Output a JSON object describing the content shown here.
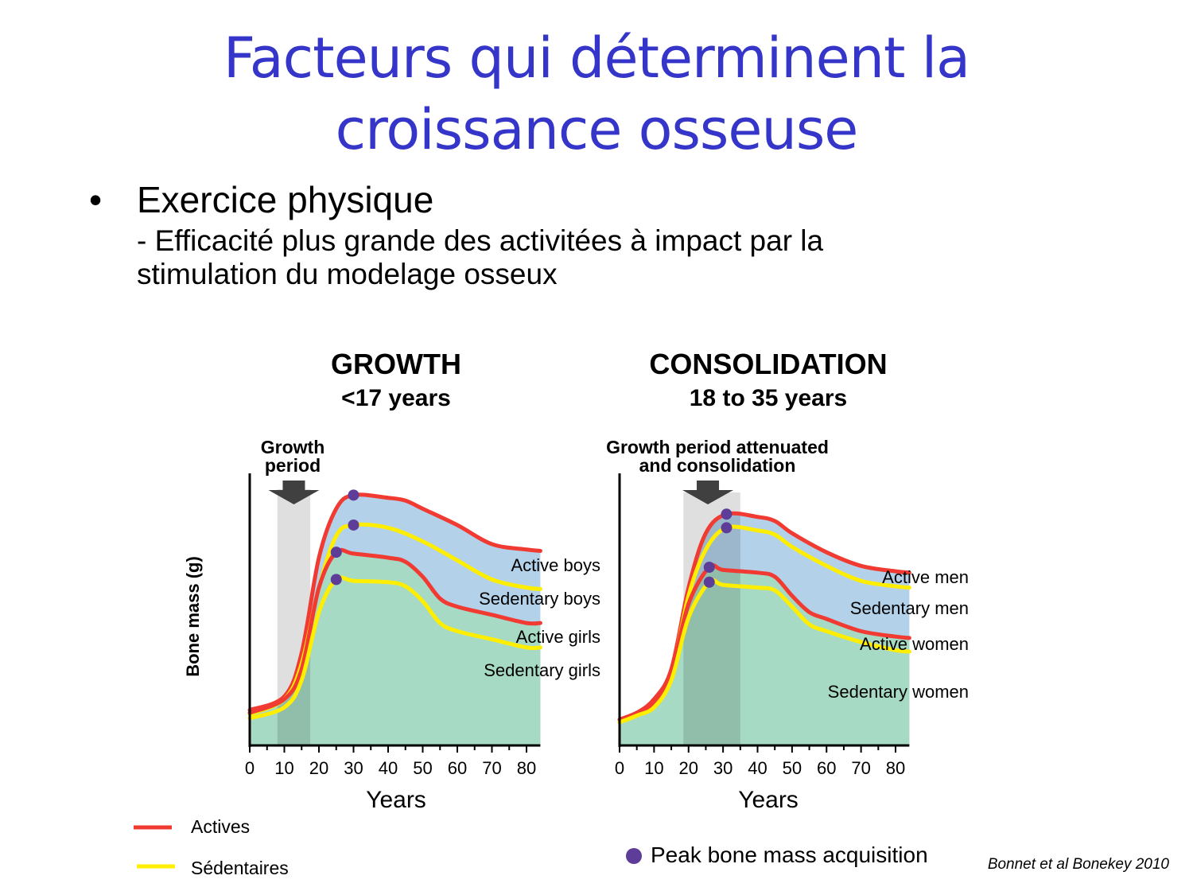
{
  "slide": {
    "title_line1": "Facteurs qui déterminent la",
    "title_line2": "croissance osseuse",
    "bullet_symbol": "•",
    "bullet": "Exercice physique",
    "sub_line1": "- Efficacité plus grande des activitées à impact par la",
    "sub_line2": "stimulation du modelage osseux",
    "citation": "Bonnet et al Bonekey 2010"
  },
  "legend": {
    "actives": "Actives",
    "sedentary": "Sédentaires",
    "peak": "Peak bone mass acquisition"
  },
  "colors": {
    "title": "#3535c9",
    "active": "#f03a32",
    "sedentary": "#ffee00",
    "peak_dot": "#5e3d99",
    "male_fill": "#b3d1e8",
    "female_fill": "#a6dac4",
    "period_shade": "#c5c4c5",
    "arrow": "#404040"
  },
  "chart_data": [
    {
      "type": "line",
      "title": "GROWTH",
      "subtitle": "<17 years",
      "xlabel": "Years",
      "ylabel": "Bone mass (g)",
      "xlim": [
        0,
        84
      ],
      "ylim": [
        0,
        100
      ],
      "y_ticks_shown": false,
      "x_ticks": [
        0,
        10,
        20,
        30,
        40,
        50,
        60,
        70,
        80
      ],
      "period": {
        "label_line1": "Growth",
        "label_line2": "period",
        "x_range": [
          8,
          17.5
        ]
      },
      "series": [
        {
          "name": "Active boys",
          "style": "active",
          "x": [
            0,
            10,
            15,
            20,
            25,
            30,
            40,
            45,
            50,
            60,
            70,
            80,
            84
          ],
          "y": [
            13,
            18,
            34,
            69,
            87,
            92,
            91,
            90,
            87,
            81,
            74,
            72,
            71.5
          ],
          "peak": [
            30,
            92
          ]
        },
        {
          "name": "Sedentary boys",
          "style": "sedentary",
          "x": [
            0,
            10,
            15,
            20,
            25,
            30,
            40,
            50,
            60,
            70,
            80,
            84
          ],
          "y": [
            11.5,
            17,
            30,
            58,
            77,
            81,
            80,
            75,
            68,
            61,
            58,
            57.5
          ],
          "peak": [
            30,
            81
          ]
        },
        {
          "name": "Active girls",
          "style": "active",
          "x": [
            0,
            10,
            15,
            20,
            25,
            30,
            40,
            45,
            50,
            55,
            60,
            70,
            80,
            84
          ],
          "y": [
            12,
            17,
            28,
            58,
            71,
            70.5,
            69,
            67.5,
            62,
            54,
            51,
            48,
            45,
            45
          ],
          "peak": [
            25,
            71
          ]
        },
        {
          "name": "Sedentary girls",
          "style": "sedentary",
          "x": [
            0,
            10,
            15,
            20,
            25,
            30,
            40,
            45,
            50,
            55,
            60,
            70,
            80,
            84
          ],
          "y": [
            10,
            14,
            24,
            49,
            61,
            60.5,
            60,
            58.5,
            53,
            45,
            42,
            39,
            36,
            36
          ],
          "peak": [
            25,
            61
          ]
        }
      ]
    },
    {
      "type": "line",
      "title": "CONSOLIDATION",
      "subtitle": "18 to 35 years",
      "xlabel": "Years",
      "xlim": [
        0,
        84
      ],
      "ylim": [
        0,
        100
      ],
      "y_ticks_shown": false,
      "x_ticks": [
        0,
        10,
        20,
        30,
        40,
        50,
        60,
        70,
        80
      ],
      "period": {
        "label_line1": "Growth period attenuated",
        "label_line2": "and consolidation",
        "x_range": [
          18.5,
          35
        ]
      },
      "series": [
        {
          "name": "Active men",
          "style": "active",
          "x": [
            0,
            5,
            10,
            15,
            20,
            25,
            31,
            40,
            45,
            50,
            60,
            70,
            80,
            84
          ],
          "y": [
            9.5,
            12,
            17,
            28,
            58,
            78,
            85,
            84,
            82.5,
            78,
            71,
            66,
            64,
            63.5
          ],
          "peak": [
            31,
            85
          ]
        },
        {
          "name": "Sedentary men",
          "style": "sedentary",
          "x": [
            0,
            5,
            10,
            15,
            20,
            25,
            31,
            40,
            45,
            50,
            60,
            70,
            80,
            84
          ],
          "y": [
            8.5,
            11,
            15,
            26,
            55,
            72,
            80,
            79,
            77.5,
            73,
            66,
            60.5,
            58.5,
            58
          ],
          "peak": [
            31,
            80
          ]
        },
        {
          "name": "Active women",
          "style": "active",
          "x": [
            0,
            5,
            10,
            15,
            20,
            26,
            30,
            40,
            45,
            50,
            55,
            60,
            70,
            80,
            84
          ],
          "y": [
            9.5,
            12,
            16,
            27,
            52,
            65.5,
            64.5,
            63.5,
            62,
            55,
            49,
            46.5,
            42,
            40,
            39.5
          ],
          "peak": [
            26,
            65.5
          ]
        },
        {
          "name": "Sedentary women",
          "style": "sedentary",
          "x": [
            0,
            5,
            10,
            15,
            20,
            26,
            30,
            40,
            45,
            50,
            55,
            60,
            70,
            80,
            84
          ],
          "y": [
            8.5,
            11,
            14,
            24,
            47,
            60,
            59,
            58,
            57,
            51,
            44.5,
            42,
            38,
            35,
            34.5
          ],
          "peak": [
            26,
            60
          ]
        }
      ]
    }
  ]
}
